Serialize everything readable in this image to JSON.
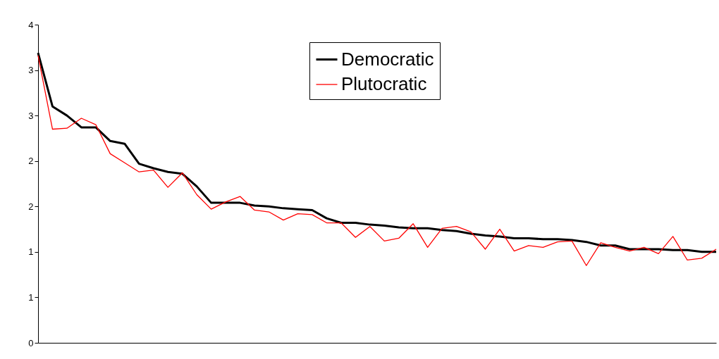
{
  "chart_data": {
    "type": "line",
    "categories": [
      null,
      null,
      null,
      null,
      null,
      null,
      null,
      null,
      null,
      null,
      null,
      null,
      null,
      null,
      null,
      null,
      null,
      null,
      null,
      null,
      null,
      null,
      null,
      null,
      null,
      null,
      null,
      null,
      null,
      null,
      null,
      null,
      null,
      null,
      null,
      null,
      null,
      null,
      null,
      null,
      null,
      null,
      null,
      null,
      null,
      null,
      null,
      null
    ],
    "series": [
      {
        "name": "Democratic",
        "color": "#000000",
        "values": [
          3.19,
          2.6,
          2.5,
          2.37,
          2.37,
          2.22,
          2.19,
          1.97,
          1.92,
          1.88,
          1.86,
          1.72,
          1.54,
          1.54,
          1.54,
          1.51,
          1.5,
          1.48,
          1.47,
          1.46,
          1.37,
          1.32,
          1.32,
          1.3,
          1.29,
          1.27,
          1.26,
          1.26,
          1.24,
          1.23,
          1.2,
          1.18,
          1.17,
          1.15,
          1.15,
          1.14,
          1.14,
          1.13,
          1.11,
          1.07,
          1.07,
          1.03,
          1.03,
          1.03,
          1.02,
          1.02,
          1.0,
          1.0
        ]
      },
      {
        "name": "Plutocratic",
        "color": "#ff0000",
        "values": [
          3.16,
          2.35,
          2.36,
          2.47,
          2.4,
          2.08,
          1.98,
          1.88,
          1.9,
          1.71,
          1.87,
          1.63,
          1.47,
          1.55,
          1.61,
          1.46,
          1.44,
          1.35,
          1.42,
          1.41,
          1.32,
          1.32,
          1.16,
          1.28,
          1.12,
          1.15,
          1.31,
          1.05,
          1.26,
          1.28,
          1.22,
          1.03,
          1.25,
          1.01,
          1.07,
          1.05,
          1.11,
          1.12,
          0.85,
          1.1,
          1.05,
          1.01,
          1.05,
          0.98,
          1.17,
          0.91,
          0.93,
          1.03
        ]
      }
    ],
    "ylim": [
      0,
      3.5
    ],
    "yticks": [
      0,
      {
        "value": 0.5,
        "label": "1"
      },
      1,
      {
        "value": 1.5,
        "label": "2"
      },
      2,
      {
        "value": 2.5,
        "label": "3"
      },
      3,
      {
        "value": 3.5,
        "label": "4"
      }
    ],
    "tick_labels": "y",
    "grid": false,
    "legend": "top",
    "marker": "none",
    "line_style": "solid"
  }
}
